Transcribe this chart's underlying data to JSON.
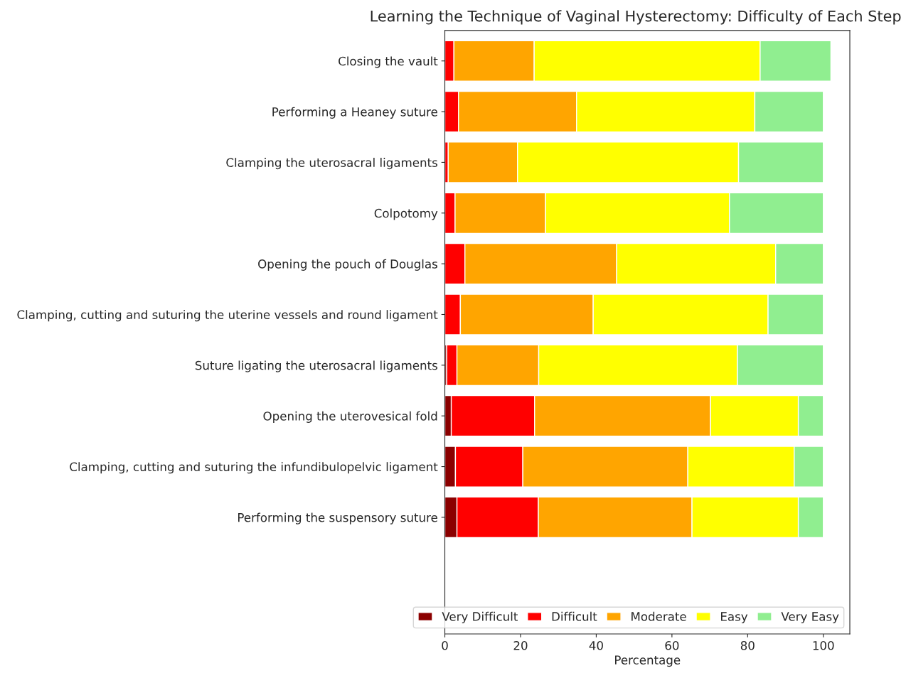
{
  "chart_data": {
    "type": "bar",
    "orientation": "horizontal",
    "stacked": true,
    "title": "Learning the Technique of Vaginal Hysterectomy: Difficulty of Each Step",
    "xlabel": "Percentage",
    "categories": [
      "Closing the vault",
      "Performing a Heaney suture",
      "Clamping the uterosacral ligaments",
      "Colpotomy",
      "Opening the pouch of Douglas",
      "Clamping, cutting and suturing the uterine vessels and round ligament",
      "Suture ligating the uterosacral ligaments",
      "Opening the uterovesical fold",
      "Clamping, cutting and suturing the infundibulopelvic ligament",
      "Performing the suspensory suture"
    ],
    "series": [
      {
        "name": "Very Difficult",
        "color": "#8b0000",
        "values": [
          0,
          0,
          0,
          0,
          0,
          0,
          0.5,
          1.7,
          2.8,
          3.2
        ]
      },
      {
        "name": "Difficult",
        "color": "#ff0000",
        "values": [
          2.4,
          3.6,
          0.9,
          2.7,
          5.3,
          4.1,
          2.7,
          22.0,
          17.8,
          21.5
        ]
      },
      {
        "name": "Moderate",
        "color": "#ffa500",
        "values": [
          21.2,
          31.2,
          18.3,
          23.9,
          40.1,
          35.1,
          21.6,
          46.5,
          43.6,
          40.6
        ]
      },
      {
        "name": "Easy",
        "color": "#ffff00",
        "values": [
          59.7,
          47.1,
          58.4,
          48.6,
          42.0,
          46.2,
          52.5,
          23.2,
          28.1,
          28.1
        ]
      },
      {
        "name": "Very Easy",
        "color": "#90ee90",
        "values": [
          18.7,
          18.1,
          22.4,
          24.8,
          12.6,
          14.6,
          22.7,
          6.6,
          7.7,
          6.6
        ]
      }
    ],
    "xlim": [
      0,
      107
    ],
    "xticks": [
      0,
      20,
      40,
      60,
      80,
      100
    ],
    "grid": false,
    "legend": "bottom right"
  }
}
